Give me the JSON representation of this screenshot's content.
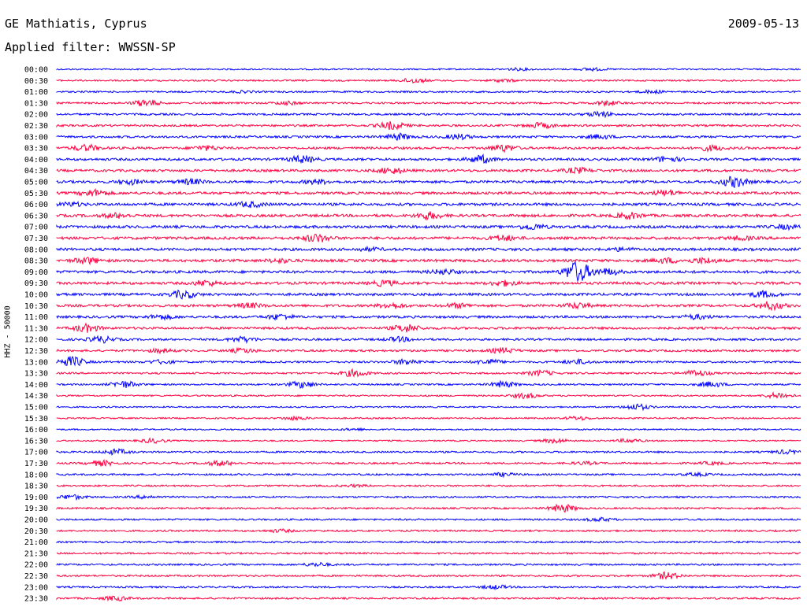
{
  "header": {
    "station": "GE Mathiatis, Cyprus",
    "date": "2009-05-13",
    "filter": "Applied filter: WWSSN-SP"
  },
  "chart_data": {
    "type": "line",
    "subtype": "helicorder",
    "ylabel": "HHZ - 50000",
    "colors": [
      "#0000ff",
      "#ff0040"
    ],
    "rows": [
      {
        "time": "00:00",
        "events": [
          [
            0.62,
            0.25
          ],
          [
            0.72,
            0.3
          ]
        ]
      },
      {
        "time": "00:30",
        "events": [
          [
            0.48,
            0.55
          ],
          [
            0.6,
            0.3
          ]
        ]
      },
      {
        "time": "01:00",
        "events": [
          [
            0.25,
            0.2
          ],
          [
            0.8,
            0.3
          ]
        ]
      },
      {
        "time": "01:30",
        "events": [
          [
            0.12,
            0.8
          ],
          [
            0.31,
            0.35
          ],
          [
            0.74,
            0.5
          ]
        ]
      },
      {
        "time": "02:00",
        "events": [
          [
            0.73,
            0.6
          ]
        ]
      },
      {
        "time": "02:30",
        "events": [
          [
            0.45,
            0.9
          ],
          [
            0.65,
            0.6
          ]
        ]
      },
      {
        "time": "03:00",
        "events": [
          [
            0.46,
            0.7
          ],
          [
            0.54,
            0.55
          ],
          [
            0.73,
            0.45
          ]
        ]
      },
      {
        "time": "03:30",
        "events": [
          [
            0.04,
            0.7
          ],
          [
            0.2,
            0.5
          ],
          [
            0.6,
            0.8
          ],
          [
            0.88,
            0.6
          ]
        ]
      },
      {
        "time": "04:00",
        "events": [
          [
            0.33,
            0.8
          ],
          [
            0.57,
            0.9
          ],
          [
            0.82,
            0.6
          ]
        ]
      },
      {
        "time": "04:30",
        "events": [
          [
            0.45,
            0.7
          ],
          [
            0.7,
            0.6
          ]
        ]
      },
      {
        "time": "05:00",
        "events": [
          [
            0.1,
            0.5
          ],
          [
            0.18,
            0.6
          ],
          [
            0.35,
            0.5
          ],
          [
            0.91,
            1.2
          ]
        ]
      },
      {
        "time": "05:30",
        "events": [
          [
            0.05,
            0.75
          ],
          [
            0.82,
            0.6
          ]
        ]
      },
      {
        "time": "06:00",
        "events": [
          [
            0.02,
            0.4
          ],
          [
            0.26,
            0.6
          ]
        ]
      },
      {
        "time": "06:30",
        "events": [
          [
            0.08,
            0.5
          ],
          [
            0.5,
            0.8
          ],
          [
            0.77,
            0.7
          ]
        ]
      },
      {
        "time": "07:00",
        "events": [
          [
            0.64,
            0.6
          ],
          [
            0.98,
            0.4
          ]
        ]
      },
      {
        "time": "07:30",
        "events": [
          [
            0.35,
            0.9
          ],
          [
            0.6,
            0.6
          ],
          [
            0.92,
            0.4
          ]
        ]
      },
      {
        "time": "08:00",
        "events": [
          [
            0.42,
            0.3
          ],
          [
            0.76,
            0.3
          ]
        ]
      },
      {
        "time": "08:30",
        "events": [
          [
            0.04,
            0.7
          ],
          [
            0.3,
            0.4
          ],
          [
            0.82,
            0.5
          ],
          [
            0.87,
            0.6
          ]
        ]
      },
      {
        "time": "09:00",
        "events": [
          [
            0.52,
            0.5
          ],
          [
            0.7,
            2.5
          ],
          [
            0.74,
            0.7
          ]
        ]
      },
      {
        "time": "09:30",
        "events": [
          [
            0.2,
            0.6
          ],
          [
            0.44,
            0.6
          ],
          [
            0.6,
            0.6
          ]
        ]
      },
      {
        "time": "10:00",
        "events": [
          [
            0.17,
            0.9
          ],
          [
            0.95,
            0.7
          ]
        ]
      },
      {
        "time": "10:30",
        "events": [
          [
            0.26,
            0.5
          ],
          [
            0.45,
            0.6
          ],
          [
            0.54,
            0.5
          ],
          [
            0.7,
            0.6
          ],
          [
            0.96,
            0.9
          ]
        ]
      },
      {
        "time": "11:00",
        "events": [
          [
            0.14,
            0.5
          ],
          [
            0.3,
            0.6
          ],
          [
            0.86,
            0.5
          ]
        ]
      },
      {
        "time": "11:30",
        "events": [
          [
            0.04,
            0.9
          ],
          [
            0.47,
            0.9
          ]
        ]
      },
      {
        "time": "12:00",
        "events": [
          [
            0.06,
            0.7
          ],
          [
            0.25,
            0.6
          ],
          [
            0.46,
            0.5
          ]
        ]
      },
      {
        "time": "12:30",
        "events": [
          [
            0.14,
            0.4
          ],
          [
            0.25,
            0.5
          ],
          [
            0.6,
            0.6
          ]
        ]
      },
      {
        "time": "13:00",
        "events": [
          [
            0.02,
            1.2
          ],
          [
            0.14,
            0.4
          ],
          [
            0.47,
            0.6
          ],
          [
            0.58,
            0.6
          ],
          [
            0.7,
            0.5
          ]
        ]
      },
      {
        "time": "13:30",
        "events": [
          [
            0.4,
            0.8
          ],
          [
            0.65,
            0.6
          ],
          [
            0.86,
            0.7
          ]
        ]
      },
      {
        "time": "14:00",
        "events": [
          [
            0.09,
            0.8
          ],
          [
            0.33,
            0.8
          ],
          [
            0.6,
            0.7
          ],
          [
            0.88,
            0.6
          ]
        ]
      },
      {
        "time": "14:30",
        "events": [
          [
            0.63,
            0.6
          ],
          [
            0.97,
            0.7
          ]
        ]
      },
      {
        "time": "15:00",
        "events": [
          [
            0.78,
            0.7
          ]
        ]
      },
      {
        "time": "15:30",
        "events": [
          [
            0.32,
            0.4
          ],
          [
            0.7,
            0.4
          ]
        ]
      },
      {
        "time": "16:00",
        "events": [
          [
            0.4,
            0.2
          ]
        ]
      },
      {
        "time": "16:30",
        "events": [
          [
            0.13,
            0.5
          ],
          [
            0.67,
            0.5
          ],
          [
            0.77,
            0.4
          ]
        ]
      },
      {
        "time": "17:00",
        "events": [
          [
            0.08,
            0.6
          ],
          [
            0.98,
            0.4
          ]
        ]
      },
      {
        "time": "17:30",
        "events": [
          [
            0.06,
            0.6
          ],
          [
            0.22,
            0.6
          ],
          [
            0.71,
            0.3
          ],
          [
            0.88,
            0.3
          ]
        ]
      },
      {
        "time": "18:00",
        "events": [
          [
            0.6,
            0.35
          ],
          [
            0.86,
            0.3
          ]
        ]
      },
      {
        "time": "18:30",
        "events": [
          [
            0.4,
            0.2
          ]
        ]
      },
      {
        "time": "19:00",
        "events": [
          [
            0.02,
            0.5
          ],
          [
            0.12,
            0.3
          ]
        ]
      },
      {
        "time": "19:30",
        "events": [
          [
            0.68,
            0.9
          ]
        ]
      },
      {
        "time": "20:00",
        "events": [
          [
            0.73,
            0.4
          ]
        ]
      },
      {
        "time": "20:30",
        "events": [
          [
            0.3,
            0.3
          ]
        ]
      },
      {
        "time": "21:00",
        "events": []
      },
      {
        "time": "21:30",
        "events": []
      },
      {
        "time": "22:00",
        "events": [
          [
            0.35,
            0.4
          ]
        ]
      },
      {
        "time": "22:30",
        "events": [
          [
            0.82,
            0.8
          ]
        ]
      },
      {
        "time": "23:00",
        "events": [
          [
            0.59,
            0.4
          ]
        ]
      },
      {
        "time": "23:30",
        "events": [
          [
            0.08,
            0.5
          ]
        ]
      }
    ]
  }
}
